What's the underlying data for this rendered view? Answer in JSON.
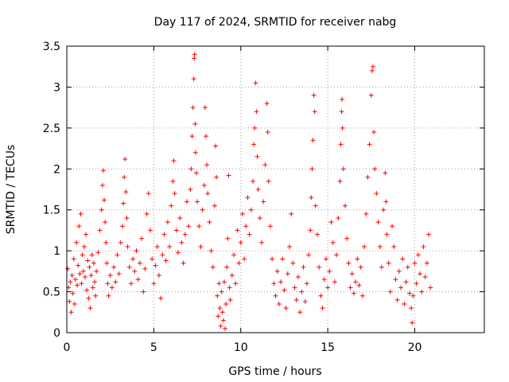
{
  "chart_data": {
    "type": "scatter",
    "title": "Day 117 of 2024, SRMTID for receiver nabg",
    "xlabel": "GPS time / hours",
    "ylabel": "SRMTID / TECUs",
    "xlim": [
      0,
      24
    ],
    "ylim": [
      0,
      3.5
    ],
    "xticks": [
      0,
      5,
      10,
      15,
      20
    ],
    "xtick_labels": [
      "0",
      "5",
      "10",
      "15",
      "20"
    ],
    "yticks": [
      0,
      0.5,
      1,
      1.5,
      2,
      2.5,
      3,
      3.5
    ],
    "ytick_labels": [
      "0",
      "0.5",
      "1",
      "1.5",
      "2",
      "2.5",
      "3",
      "3.5"
    ],
    "grid": true,
    "marker": "plus",
    "color": "#ff0000",
    "series": [
      {
        "name": "SRMTID",
        "points": [
          [
            0.05,
            0.78
          ],
          [
            0.1,
            0.55
          ],
          [
            0.15,
            0.38
          ],
          [
            0.2,
            0.62
          ],
          [
            0.25,
            0.25
          ],
          [
            0.3,
            0.7
          ],
          [
            0.35,
            0.48
          ],
          [
            0.4,
            0.9
          ],
          [
            0.45,
            0.35
          ],
          [
            0.5,
            0.65
          ],
          [
            0.55,
            1.1
          ],
          [
            0.6,
            0.58
          ],
          [
            0.65,
            0.82
          ],
          [
            0.7,
            1.3
          ],
          [
            0.75,
            0.72
          ],
          [
            0.8,
            1.45
          ],
          [
            0.85,
            0.6
          ],
          [
            0.9,
            0.95
          ],
          [
            0.95,
            0.75
          ],
          [
            1.0,
            1.05
          ],
          [
            1.05,
            0.68
          ],
          [
            1.1,
            1.2
          ],
          [
            1.15,
            0.52
          ],
          [
            1.2,
            0.88
          ],
          [
            1.25,
            0.42
          ],
          [
            1.3,
            0.8
          ],
          [
            1.35,
            0.3
          ],
          [
            1.4,
            0.7
          ],
          [
            1.45,
            0.95
          ],
          [
            1.5,
            0.55
          ],
          [
            1.55,
            0.85
          ],
          [
            1.6,
            0.62
          ],
          [
            1.65,
            0.45
          ],
          [
            1.7,
            0.75
          ],
          [
            1.8,
            0.98
          ],
          [
            1.9,
            1.25
          ],
          [
            2.0,
            1.5
          ],
          [
            2.05,
            1.8
          ],
          [
            2.1,
            1.98
          ],
          [
            2.15,
            1.62
          ],
          [
            2.2,
            1.35
          ],
          [
            2.25,
            1.1
          ],
          [
            2.3,
            0.85
          ],
          [
            2.35,
            0.6
          ],
          [
            2.4,
            0.45
          ],
          [
            2.5,
            0.7
          ],
          [
            2.6,
            0.55
          ],
          [
            2.7,
            0.8
          ],
          [
            2.8,
            0.62
          ],
          [
            2.9,
            0.95
          ],
          [
            3.0,
            0.72
          ],
          [
            3.1,
            1.1
          ],
          [
            3.2,
            1.3
          ],
          [
            3.25,
            1.58
          ],
          [
            3.3,
            1.9
          ],
          [
            3.35,
            2.12
          ],
          [
            3.4,
            1.72
          ],
          [
            3.45,
            1.4
          ],
          [
            3.5,
            1.05
          ],
          [
            3.6,
            0.8
          ],
          [
            3.7,
            0.6
          ],
          [
            3.8,
            0.9
          ],
          [
            3.9,
            0.75
          ],
          [
            4.0,
            1.0
          ],
          [
            4.1,
            0.65
          ],
          [
            4.2,
            0.85
          ],
          [
            4.3,
            1.15
          ],
          [
            4.4,
            0.5
          ],
          [
            4.5,
            0.78
          ],
          [
            4.6,
            1.45
          ],
          [
            4.7,
            1.7
          ],
          [
            4.8,
            1.25
          ],
          [
            4.9,
            0.9
          ],
          [
            5.0,
            0.6
          ],
          [
            5.1,
            0.82
          ],
          [
            5.2,
            1.05
          ],
          [
            5.3,
            0.7
          ],
          [
            5.4,
            0.42
          ],
          [
            5.5,
            0.95
          ],
          [
            5.6,
            1.2
          ],
          [
            5.7,
            0.88
          ],
          [
            5.8,
            1.35
          ],
          [
            5.9,
            1.05
          ],
          [
            6.0,
            1.55
          ],
          [
            6.1,
            1.85
          ],
          [
            6.15,
            2.1
          ],
          [
            6.2,
            1.7
          ],
          [
            6.3,
            1.25
          ],
          [
            6.4,
            0.98
          ],
          [
            6.5,
            1.4
          ],
          [
            6.6,
            1.1
          ],
          [
            6.7,
            0.85
          ],
          [
            6.8,
            1.2
          ],
          [
            6.9,
            1.6
          ],
          [
            7.0,
            1.3
          ],
          [
            7.1,
            1.75
          ],
          [
            7.15,
            2.0
          ],
          [
            7.2,
            2.4
          ],
          [
            7.25,
            2.75
          ],
          [
            7.3,
            3.1
          ],
          [
            7.32,
            3.35
          ],
          [
            7.35,
            3.4
          ],
          [
            7.38,
            2.55
          ],
          [
            7.4,
            2.2
          ],
          [
            7.45,
            1.95
          ],
          [
            7.5,
            1.6
          ],
          [
            7.6,
            1.3
          ],
          [
            7.7,
            1.05
          ],
          [
            7.8,
            1.5
          ],
          [
            7.9,
            1.8
          ],
          [
            7.95,
            2.75
          ],
          [
            8.0,
            2.4
          ],
          [
            8.05,
            2.05
          ],
          [
            8.1,
            1.7
          ],
          [
            8.2,
            1.35
          ],
          [
            8.3,
            1.0
          ],
          [
            8.4,
            0.8
          ],
          [
            8.5,
            1.55
          ],
          [
            8.55,
            2.28
          ],
          [
            8.6,
            1.9
          ],
          [
            8.65,
            0.45
          ],
          [
            8.7,
            0.2
          ],
          [
            8.75,
            0.6
          ],
          [
            8.8,
            0.3
          ],
          [
            8.85,
            0.08
          ],
          [
            8.9,
            0.5
          ],
          [
            8.95,
            0.25
          ],
          [
            9.0,
            0.15
          ],
          [
            9.05,
            0.62
          ],
          [
            9.1,
            0.05
          ],
          [
            9.15,
            0.35
          ],
          [
            9.2,
            0.8
          ],
          [
            9.25,
            1.15
          ],
          [
            9.3,
            1.92
          ],
          [
            9.35,
            0.55
          ],
          [
            9.4,
            0.4
          ],
          [
            9.5,
            0.7
          ],
          [
            9.6,
            0.95
          ],
          [
            9.7,
            0.6
          ],
          [
            9.8,
            1.25
          ],
          [
            9.9,
            0.85
          ],
          [
            10.0,
            1.1
          ],
          [
            10.1,
            1.45
          ],
          [
            10.2,
            0.9
          ],
          [
            10.3,
            1.3
          ],
          [
            10.4,
            1.65
          ],
          [
            10.5,
            1.2
          ],
          [
            10.6,
            1.5
          ],
          [
            10.7,
            1.85
          ],
          [
            10.75,
            2.3
          ],
          [
            10.8,
            2.5
          ],
          [
            10.85,
            3.05
          ],
          [
            10.9,
            2.7
          ],
          [
            10.95,
            2.15
          ],
          [
            11.0,
            1.75
          ],
          [
            11.1,
            1.4
          ],
          [
            11.2,
            1.1
          ],
          [
            11.3,
            1.6
          ],
          [
            11.4,
            2.05
          ],
          [
            11.5,
            2.8
          ],
          [
            11.55,
            2.45
          ],
          [
            11.6,
            1.85
          ],
          [
            11.7,
            1.3
          ],
          [
            11.8,
            0.9
          ],
          [
            11.9,
            0.6
          ],
          [
            12.0,
            0.45
          ],
          [
            12.1,
            0.75
          ],
          [
            12.2,
            0.35
          ],
          [
            12.3,
            0.62
          ],
          [
            12.4,
            0.9
          ],
          [
            12.5,
            0.52
          ],
          [
            12.6,
            0.3
          ],
          [
            12.7,
            0.72
          ],
          [
            12.8,
            1.05
          ],
          [
            12.9,
            1.45
          ],
          [
            13.0,
            0.85
          ],
          [
            13.1,
            0.55
          ],
          [
            13.2,
            0.4
          ],
          [
            13.3,
            0.68
          ],
          [
            13.4,
            0.25
          ],
          [
            13.5,
            0.5
          ],
          [
            13.6,
            0.8
          ],
          [
            13.7,
            0.38
          ],
          [
            13.8,
            0.6
          ],
          [
            13.9,
            0.95
          ],
          [
            14.0,
            1.25
          ],
          [
            14.05,
            1.65
          ],
          [
            14.1,
            2.0
          ],
          [
            14.15,
            2.35
          ],
          [
            14.2,
            2.9
          ],
          [
            14.25,
            2.7
          ],
          [
            14.3,
            1.55
          ],
          [
            14.4,
            1.2
          ],
          [
            14.5,
            0.8
          ],
          [
            14.6,
            0.45
          ],
          [
            14.7,
            0.3
          ],
          [
            14.8,
            0.65
          ],
          [
            14.9,
            0.9
          ],
          [
            15.0,
            0.55
          ],
          [
            15.1,
            0.75
          ],
          [
            15.2,
            1.35
          ],
          [
            15.3,
            1.1
          ],
          [
            15.4,
            0.62
          ],
          [
            15.5,
            0.95
          ],
          [
            15.6,
            1.4
          ],
          [
            15.7,
            1.85
          ],
          [
            15.75,
            2.3
          ],
          [
            15.8,
            2.7
          ],
          [
            15.82,
            2.85
          ],
          [
            15.85,
            2.5
          ],
          [
            15.9,
            2.0
          ],
          [
            16.0,
            1.55
          ],
          [
            16.1,
            1.15
          ],
          [
            16.2,
            0.85
          ],
          [
            16.3,
            0.55
          ],
          [
            16.4,
            0.72
          ],
          [
            16.5,
            0.48
          ],
          [
            16.6,
            0.62
          ],
          [
            16.7,
            0.9
          ],
          [
            16.8,
            0.58
          ],
          [
            16.9,
            0.8
          ],
          [
            17.0,
            0.45
          ],
          [
            17.1,
            1.05
          ],
          [
            17.2,
            1.45
          ],
          [
            17.3,
            1.9
          ],
          [
            17.4,
            2.3
          ],
          [
            17.5,
            2.9
          ],
          [
            17.55,
            3.2
          ],
          [
            17.6,
            3.25
          ],
          [
            17.65,
            2.45
          ],
          [
            17.7,
            2.0
          ],
          [
            17.8,
            1.7
          ],
          [
            17.9,
            1.35
          ],
          [
            18.0,
            1.05
          ],
          [
            18.1,
            0.8
          ],
          [
            18.2,
            1.5
          ],
          [
            18.3,
            1.95
          ],
          [
            18.35,
            1.6
          ],
          [
            18.4,
            1.2
          ],
          [
            18.5,
            0.85
          ],
          [
            18.6,
            0.5
          ],
          [
            18.7,
            1.3
          ],
          [
            18.8,
            1.05
          ],
          [
            18.9,
            0.65
          ],
          [
            19.0,
            0.4
          ],
          [
            19.1,
            0.75
          ],
          [
            19.2,
            0.55
          ],
          [
            19.3,
            0.9
          ],
          [
            19.4,
            0.35
          ],
          [
            19.5,
            0.62
          ],
          [
            19.6,
            0.8
          ],
          [
            19.7,
            0.48
          ],
          [
            19.8,
            0.3
          ],
          [
            19.85,
            0.12
          ],
          [
            19.9,
            0.45
          ],
          [
            20.0,
            0.85
          ],
          [
            20.1,
            0.6
          ],
          [
            20.2,
            0.95
          ],
          [
            20.3,
            0.72
          ],
          [
            20.4,
            0.5
          ],
          [
            20.5,
            1.05
          ],
          [
            20.6,
            0.68
          ],
          [
            20.7,
            0.85
          ],
          [
            20.8,
            1.2
          ],
          [
            20.9,
            0.55
          ]
        ]
      }
    ]
  }
}
